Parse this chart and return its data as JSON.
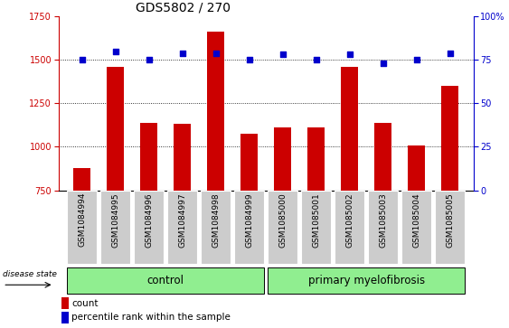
{
  "title": "GDS5802 / 270",
  "samples": [
    "GSM1084994",
    "GSM1084995",
    "GSM1084996",
    "GSM1084997",
    "GSM1084998",
    "GSM1084999",
    "GSM1085000",
    "GSM1085001",
    "GSM1085002",
    "GSM1085003",
    "GSM1085004",
    "GSM1085005"
  ],
  "counts": [
    875,
    1460,
    1140,
    1130,
    1660,
    1075,
    1110,
    1110,
    1460,
    1140,
    1010,
    1350
  ],
  "percentile_ranks": [
    75,
    80,
    75,
    79,
    79,
    75,
    78,
    75,
    78,
    73,
    75,
    79
  ],
  "bar_color": "#cc0000",
  "dot_color": "#0000cc",
  "bar_bottom": 750,
  "ylim_left": [
    750,
    1750
  ],
  "ylim_right": [
    0,
    100
  ],
  "yticks_left": [
    750,
    1000,
    1250,
    1500,
    1750
  ],
  "yticks_right": [
    0,
    25,
    50,
    75,
    100
  ],
  "grid_values": [
    1000,
    1250,
    1500
  ],
  "control_samples": 6,
  "primary_samples": 6,
  "control_label": "control",
  "primary_label": "primary myelofibrosis",
  "disease_state_label": "disease state",
  "legend_count_label": "count",
  "legend_percentile_label": "percentile rank within the sample",
  "control_bg": "#90EE90",
  "primary_bg": "#90EE90",
  "tick_bg": "#cccccc",
  "title_fontsize": 10,
  "label_fontsize": 8.5,
  "tick_fontsize": 7,
  "sample_fontsize": 6.5
}
